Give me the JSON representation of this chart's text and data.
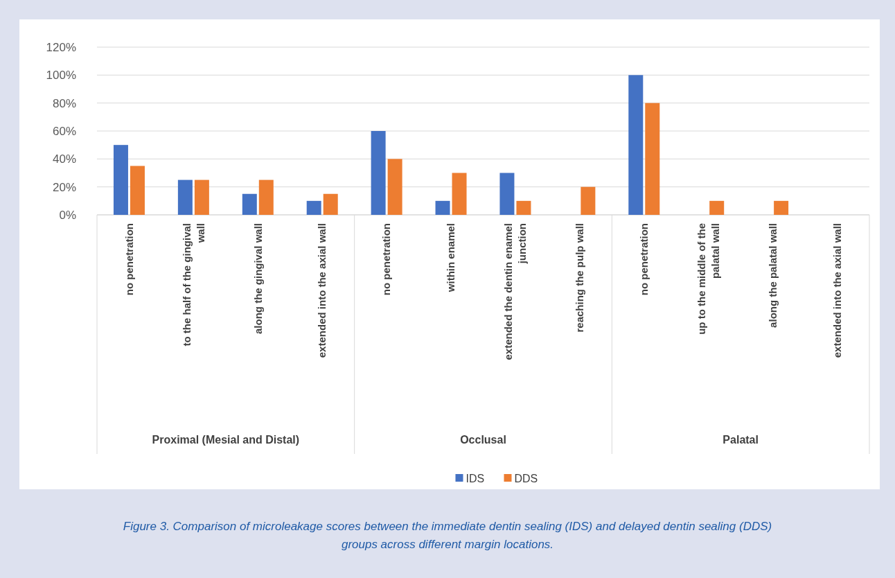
{
  "chart_data": {
    "type": "bar",
    "categories": [
      "no penetration",
      "to the half of the gingival wall",
      "along the gingival wall",
      "extended into the axial wall",
      "no penetration",
      "within enamel",
      "extended the dentin enamel junction",
      "reaching the pulp wall",
      "no penetration",
      "up to the middle of the palatal wall",
      "along the palatal wall",
      "extended into the axial wall"
    ],
    "series": [
      {
        "name": "IDS",
        "color": "#4472c4",
        "values": [
          50,
          25,
          15,
          10,
          60,
          10,
          30,
          0,
          100,
          0,
          0,
          0
        ]
      },
      {
        "name": "DDS",
        "color": "#ed7d31",
        "values": [
          35,
          25,
          25,
          15,
          40,
          30,
          10,
          20,
          80,
          10,
          10,
          0
        ]
      }
    ],
    "ylim": [
      0,
      120
    ],
    "yticks": [
      {
        "value": 0,
        "label": "0%"
      },
      {
        "value": 20,
        "label": "20%"
      },
      {
        "value": 40,
        "label": "40%"
      },
      {
        "value": 60,
        "label": "60%"
      },
      {
        "value": 80,
        "label": "80%"
      },
      {
        "value": 100,
        "label": "100%"
      },
      {
        "value": 120,
        "label": "120%"
      }
    ],
    "grid": "y",
    "legend": "bottom",
    "annotations": [
      "Proximal (Mesial and Distal)",
      "Occlusal",
      "Palatal",
      "Figure 3. Comparison of microleakage scores between the immediate dentin sealing (IDS) and delayed dentin sealing (DDS) groups across different margin locations."
    ]
  }
}
